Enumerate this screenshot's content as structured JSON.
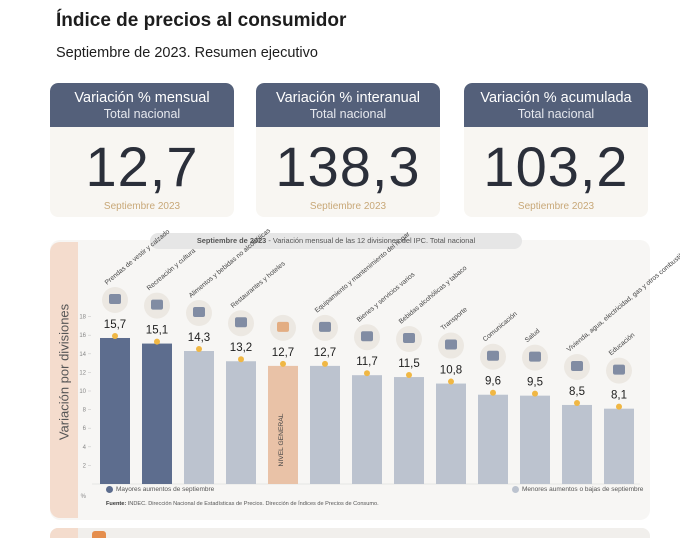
{
  "header": {
    "title": "Índice de precios al consumidor",
    "subtitle": "Septiembre de 2023. Resumen ejecutivo"
  },
  "cards": [
    {
      "label": "Variación % mensual",
      "sub": "Total nacional",
      "value": "12,7",
      "footer": "Septiembre 2023"
    },
    {
      "label": "Variación % interanual",
      "sub": "Total nacional",
      "value": "138,3",
      "footer": "Septiembre 2023"
    },
    {
      "label": "Variación % acumulada",
      "sub": "Total nacional",
      "value": "103,2",
      "footer": "Septiembre 2023"
    }
  ],
  "chart_title": {
    "date": "Septiembre de 2023",
    "text": " - Variación mensual de las 12 divisiones del IPC. Total nacional"
  },
  "chart_data": {
    "type": "bar",
    "title": "Septiembre de 2023 - Variación mensual de las 12 divisiones del IPC. Total nacional",
    "ylabel": "Variación por divisiones",
    "yunit": "%",
    "ylim": [
      0,
      18
    ],
    "yticks": [
      2,
      4,
      6,
      8,
      10,
      12,
      14,
      16,
      18
    ],
    "categories": [
      "Prendas de vestir y calzado",
      "Recreación y cultura",
      "Alimentos y bebidas no alcohólicas",
      "Restaurantes y hoteles",
      "NIVEL GENERAL",
      "Equipamiento y mantenimiento del hogar",
      "Bienes y servicios varios",
      "Bebidas alcohólicas y tabaco",
      "Transporte",
      "Comunicación",
      "Salud",
      "Vivienda, agua, electricidad, gas y otros combustibles",
      "Educación"
    ],
    "values": [
      15.7,
      15.1,
      14.3,
      13.2,
      12.7,
      12.7,
      11.7,
      11.5,
      10.8,
      9.6,
      9.5,
      8.5,
      8.1
    ],
    "value_labels": [
      "15,7",
      "15,1",
      "14,3",
      "13,2",
      "12,7",
      "12,7",
      "11,7",
      "11,5",
      "10,8",
      "9,6",
      "9,5",
      "8,5",
      "8,1"
    ],
    "groups": [
      "mayor",
      "mayor",
      "menor",
      "menor",
      "general",
      "menor",
      "menor",
      "menor",
      "menor",
      "menor",
      "menor",
      "menor",
      "menor"
    ],
    "icons": [
      "shirt-icon",
      "sun-umbrella-icon",
      "food-basket-icon",
      "cutlery-icon",
      "general-level-icon",
      "home-equipment-icon",
      "tools-icon",
      "bottle-glass-icon",
      "bus-icon",
      "phone-icon",
      "health-cross-icon",
      "light-bulb-icon",
      "book-icon"
    ],
    "general_bar_label": "NIVEL GENERAL",
    "legend": {
      "left": "Mayores aumentos de septiembre",
      "right": "Menores aumentos o bajas de septiembre"
    },
    "colors": {
      "mayor": "#5d6d8e",
      "menor": "#bcc3cf",
      "general": "#e9c2a7",
      "value_marker": "#f0b744"
    }
  },
  "source": {
    "label": "Fuente:",
    "text": " INDEC. Dirección Nacional de Estadísticas de Precios. Dirección de Índices de Precios de Consumo."
  }
}
